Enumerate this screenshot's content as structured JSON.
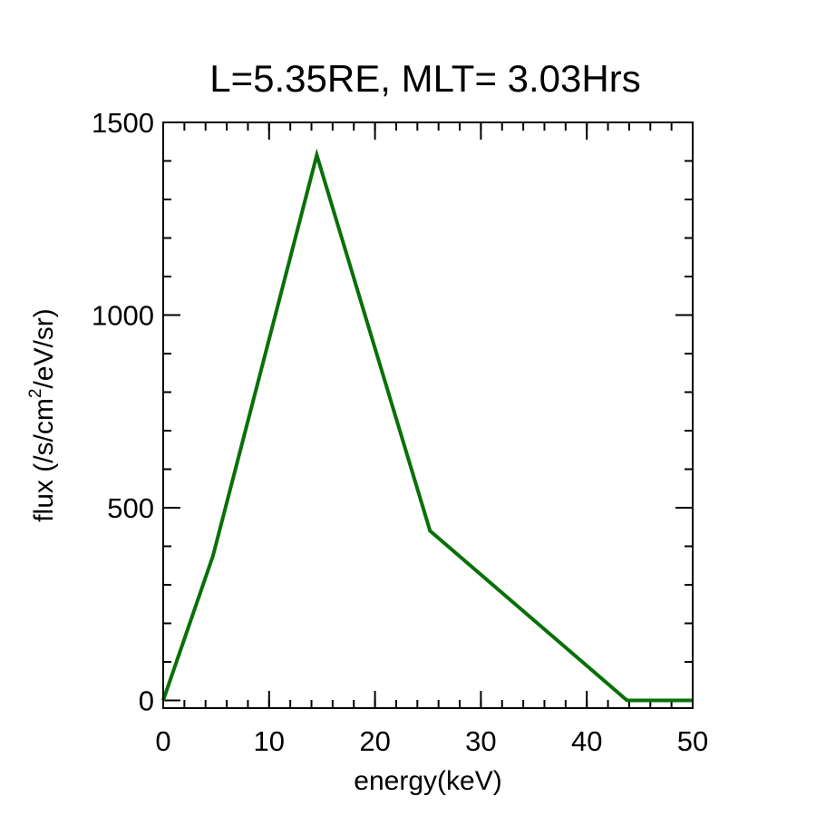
{
  "chart_data": {
    "type": "line",
    "title": "L=5.35RE, MLT= 3.03Hrs",
    "xlabel": "energy(keV)",
    "ylabel_main": "flux (/s/cm",
    "ylabel_sup": "2",
    "ylabel_tail": "/eV/sr)",
    "xlim": [
      0,
      50
    ],
    "ylim": [
      -20,
      1500
    ],
    "x_ticks": [
      "0",
      "10",
      "20",
      "30",
      "40",
      "50"
    ],
    "y_ticks": [
      "0",
      "500",
      "1000",
      "1500"
    ],
    "x_tick_values": [
      0,
      10,
      20,
      30,
      40,
      50
    ],
    "y_tick_values": [
      0,
      500,
      1000,
      1500
    ],
    "x_minor_step": 2,
    "y_minor_step": 100,
    "grid": false,
    "series": [
      {
        "color": "#087008",
        "x": [
          0,
          4.7,
          14.5,
          25.2,
          43.8,
          50
        ],
        "y": [
          0,
          375,
          1415,
          440,
          0,
          0
        ]
      }
    ]
  }
}
